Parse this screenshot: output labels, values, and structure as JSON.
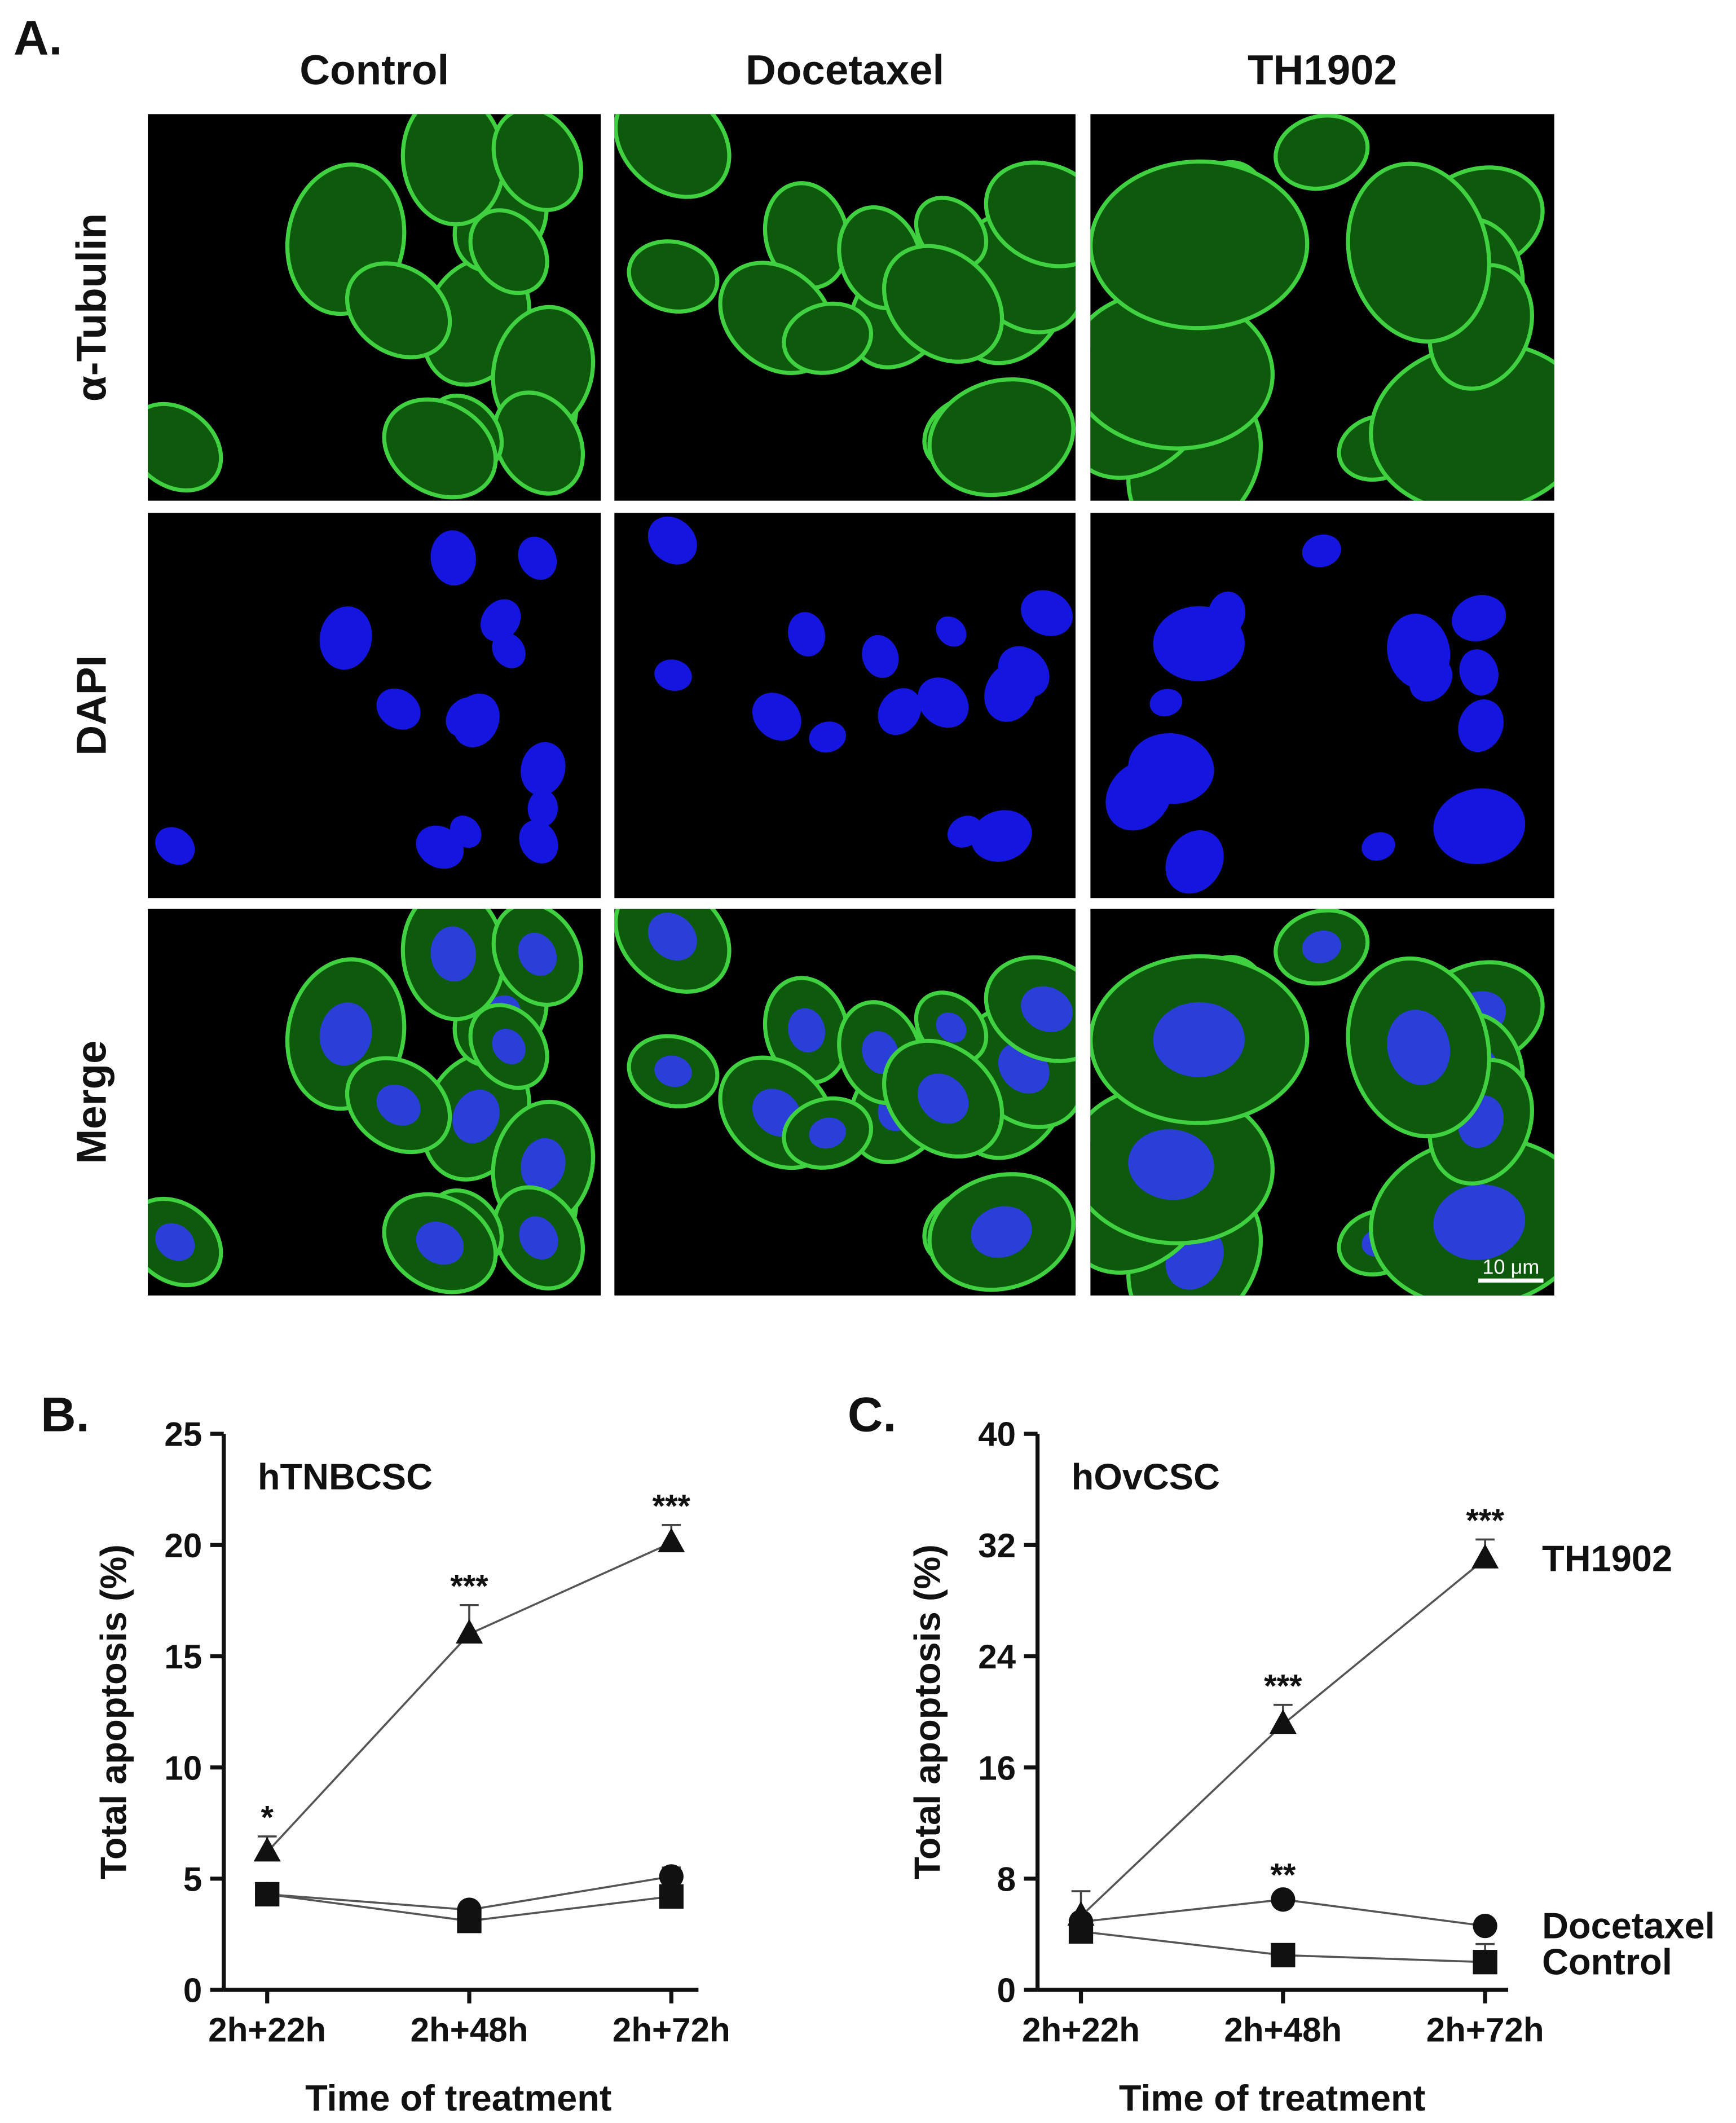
{
  "figure": {
    "panel_a": {
      "label": "A.",
      "columns": [
        "Control",
        "Docetaxel",
        "TH1902"
      ],
      "rows": [
        "α-Tubulin",
        "DAPI",
        "Merge"
      ],
      "scale_bar": "10 μm"
    }
  },
  "chart_data": [
    {
      "type": "line",
      "panel_label": "B.",
      "subtitle": "hTNBCSC",
      "y_label": "Total apoptosis (%)",
      "x_label": "Time of treatment",
      "categories": [
        "2h+22h",
        "2h+48h",
        "2h+72h"
      ],
      "ylim": [
        0,
        25
      ],
      "yticks": [
        0,
        5,
        10,
        15,
        20,
        25
      ],
      "series": [
        {
          "marker": "square",
          "color": "#111111",
          "values": [
            4.3,
            3.1,
            4.2
          ],
          "errors": [
            0.3,
            0.3,
            0.3
          ],
          "annotations": [
            null,
            null,
            null
          ]
        },
        {
          "marker": "circle",
          "color": "#111111",
          "values": [
            4.3,
            3.6,
            5.1
          ],
          "errors": [
            0.3,
            0.3,
            0.4
          ],
          "annotations": [
            null,
            null,
            null
          ]
        },
        {
          "marker": "triangle",
          "color": "#111111",
          "values": [
            6.2,
            16.0,
            20.1
          ],
          "errors": [
            0.7,
            1.3,
            0.8
          ],
          "annotations": [
            "*",
            "***",
            "***"
          ]
        }
      ]
    },
    {
      "type": "line",
      "panel_label": "C.",
      "subtitle": "hOvCSC",
      "y_label": "Total apoptosis (%)",
      "x_label": "Time of treatment",
      "categories": [
        "2h+22h",
        "2h+48h",
        "2h+72h"
      ],
      "ylim": [
        0,
        40
      ],
      "yticks": [
        0,
        8,
        16,
        24,
        32,
        40
      ],
      "series": [
        {
          "name": "Control",
          "marker": "square",
          "color": "#111111",
          "values": [
            4.2,
            2.5,
            2.0
          ],
          "errors": [
            0.5,
            0.4,
            1.3
          ],
          "annotations": [
            null,
            null,
            null
          ]
        },
        {
          "name": "Docetaxel",
          "marker": "circle",
          "color": "#111111",
          "values": [
            4.9,
            6.5,
            4.6
          ],
          "errors": [
            0.5,
            0.4,
            0.4
          ],
          "annotations": [
            null,
            "**",
            null
          ]
        },
        {
          "name": "TH1902",
          "marker": "triangle",
          "color": "#111111",
          "values": [
            5.3,
            19.1,
            31.0
          ],
          "errors": [
            1.8,
            1.4,
            1.4
          ],
          "annotations": [
            null,
            "***",
            "***"
          ]
        }
      ]
    }
  ]
}
